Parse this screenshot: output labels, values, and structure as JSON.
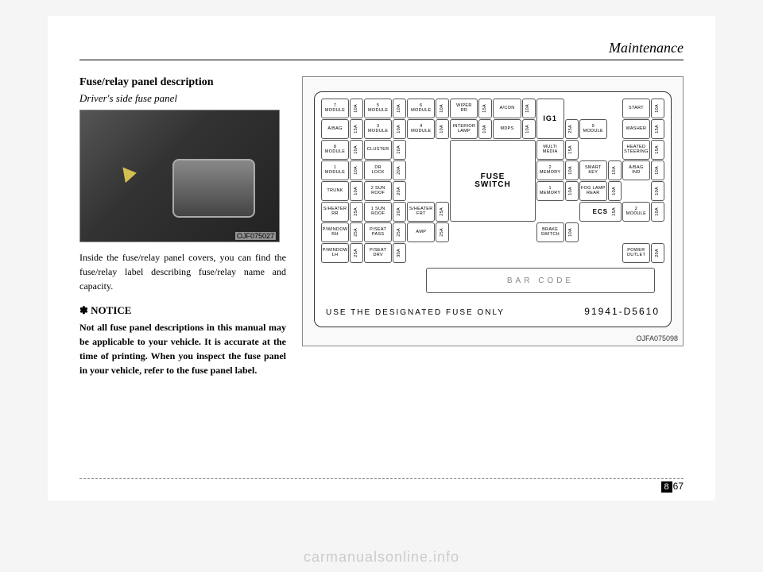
{
  "header": "Maintenance",
  "watermark": "carmanualsonline.info",
  "left": {
    "title": "Fuse/relay panel description",
    "subtitle": "Driver's side fuse panel",
    "photo_caption": "OJF075027",
    "body": "Inside the fuse/relay panel covers, you can find the fuse/relay label describing fuse/relay name and capacity.",
    "notice_head": "✽ NOTICE",
    "notice": "Not all fuse panel descriptions in this manual may be applicable to your vehicle. It is accurate at the time of printing. When you inspect the fuse panel in your vehicle, refer to the fuse panel label."
  },
  "diagram": {
    "caption": "OJFA075098",
    "fuse_switch": "FUSE SWITCH",
    "ig1": "IG1",
    "ecs": "ECS",
    "barcode": "BAR CODE",
    "bottom_text": "USE THE DESIGNATED FUSE ONLY",
    "part_number": "91941-D5610",
    "cells": {
      "r1": [
        {
          "label": "7\nMODULE",
          "amp": "10A"
        },
        {
          "label": "5\nMODULE",
          "amp": "10A"
        },
        {
          "label": "6\nMODULE",
          "amp": "10A"
        },
        {
          "label": "WIPER\nRR",
          "amp": "15A"
        },
        {
          "label": "A/CON",
          "amp": "10A"
        },
        {
          "label": "",
          "amp": ""
        },
        {
          "label": "",
          "amp": ""
        },
        {
          "label": "START",
          "amp": "10A"
        }
      ],
      "r2": [
        {
          "label": "A/BAG",
          "amp": "15A"
        },
        {
          "label": "3\nMODULE",
          "amp": "10A"
        },
        {
          "label": "4\nMODULE",
          "amp": "10A"
        },
        {
          "label": "INTERIOR\nLAMP",
          "amp": "10A"
        },
        {
          "label": "MDPS",
          "amp": "10A"
        },
        {
          "label": "",
          "amp": "25A"
        },
        {
          "label": "9\nMODULE",
          "amp": ""
        },
        {
          "label": "WASHER",
          "amp": "15A"
        }
      ],
      "r3": [
        {
          "label": "8\nMODULE",
          "amp": "10A"
        },
        {
          "label": "CLUSTER",
          "amp": "10A"
        },
        {
          "label": "",
          "amp": ""
        },
        {
          "label": "",
          "amp": ""
        },
        {
          "label": "",
          "amp": ""
        },
        {
          "label": "MULTI\nMEDIA",
          "amp": "15A"
        },
        {
          "label": "",
          "amp": ""
        },
        {
          "label": "HEATED\nSTEERING",
          "amp": "15A"
        }
      ],
      "r4": [
        {
          "label": "1\nMODULE",
          "amp": "10A"
        },
        {
          "label": "DR\nLOCK",
          "amp": "20A"
        },
        {
          "label": "",
          "amp": ""
        },
        {
          "label": "",
          "amp": ""
        },
        {
          "label": "",
          "amp": ""
        },
        {
          "label": "2\nMEMORY",
          "amp": "10A"
        },
        {
          "label": "SMART\nKEY",
          "amp": "15A"
        },
        {
          "label": "A/BAG\nIND",
          "amp": "10A"
        }
      ],
      "r5": [
        {
          "label": "TRUNK",
          "amp": "10A"
        },
        {
          "label": "2 SUN\nROOF",
          "amp": "20A"
        },
        {
          "label": "",
          "amp": ""
        },
        {
          "label": "",
          "amp": ""
        },
        {
          "label": "",
          "amp": ""
        },
        {
          "label": "1\nMEMORY",
          "amp": "10A"
        },
        {
          "label": "FOG LAMP\nREAR",
          "amp": "10A"
        },
        {
          "label": "",
          "amp": "10A"
        }
      ],
      "r6": [
        {
          "label": "S/HEATER\nRR",
          "amp": "25A"
        },
        {
          "label": "1 SUN\nROOF",
          "amp": "20A"
        },
        {
          "label": "S/HEATER\nFRT",
          "amp": "25A"
        },
        {
          "label": "",
          "amp": ""
        },
        {
          "label": "",
          "amp": ""
        },
        {
          "label": "",
          "amp": ""
        },
        {
          "label": "",
          "amp": "15A"
        },
        {
          "label": "2\nMODULE",
          "amp": "10A"
        }
      ],
      "r7": [
        {
          "label": "P/WINDOW\nRH",
          "amp": "25A"
        },
        {
          "label": "P/SEAT\nPASS",
          "amp": "25A"
        },
        {
          "label": "AMP",
          "amp": "25A"
        },
        {
          "label": "",
          "amp": ""
        },
        {
          "label": "",
          "amp": ""
        },
        {
          "label": "BRAKE\nSWITCH",
          "amp": "10A"
        },
        {
          "label": "",
          "amp": ""
        },
        {
          "label": "",
          "amp": ""
        }
      ],
      "r8": [
        {
          "label": "P/WINDOW\nLH",
          "amp": "25A"
        },
        {
          "label": "P/SEAT\nDRV",
          "amp": "30A"
        },
        {
          "label": "",
          "amp": ""
        },
        {
          "label": "",
          "amp": ""
        },
        {
          "label": "",
          "amp": ""
        },
        {
          "label": "",
          "amp": ""
        },
        {
          "label": "",
          "amp": ""
        },
        {
          "label": "POWER\nOUTLET",
          "amp": "20A"
        }
      ]
    }
  },
  "footer": {
    "section": "8",
    "page": "67"
  },
  "colors": {
    "page_bg": "#ffffff",
    "body_bg": "#f5f5f5",
    "border": "#000000",
    "diagram_border": "#888888",
    "watermark": "#cccccc"
  }
}
